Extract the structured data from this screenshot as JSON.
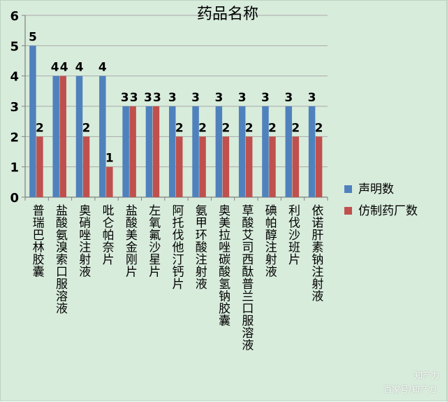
{
  "chart_data": {
    "type": "bar",
    "title": "药品名称",
    "xlabel": "",
    "ylabel": "",
    "ylim": [
      0,
      6
    ],
    "yticks": [
      0,
      1,
      2,
      3,
      4,
      5,
      6
    ],
    "grid": true,
    "legend_position": "right",
    "categories": [
      "普瑞巴林胶囊",
      "盐酸氨溴索口服溶液",
      "奥硝唑注射液",
      "吡仑帕奈片",
      "盐酸美金刚片",
      "左氧氟沙星片",
      "阿托伐他汀钙片",
      "氨甲环酸注射液",
      "奥美拉唑碳酸氢钠胶囊",
      "草酸艾司西酞普兰口服溶液",
      "碘帕醇注射液",
      "利伐沙班片",
      "依诺肝素钠注射液"
    ],
    "series": [
      {
        "name": "声明数",
        "color": "#4f81bd",
        "values": [
          5,
          4,
          4,
          4,
          3,
          3,
          3,
          3,
          3,
          3,
          3,
          3,
          3
        ]
      },
      {
        "name": "仿制药厂数",
        "color": "#c0504d",
        "values": [
          2,
          4,
          2,
          1,
          3,
          3,
          2,
          2,
          2,
          2,
          2,
          2,
          2
        ]
      }
    ]
  },
  "watermark": {
    "brand": "知产力",
    "source": "百家号/知产力"
  },
  "colors": {
    "background": "#d8ecdc",
    "gridline": "#a9a9a9",
    "axis": "#7f7f7f"
  }
}
